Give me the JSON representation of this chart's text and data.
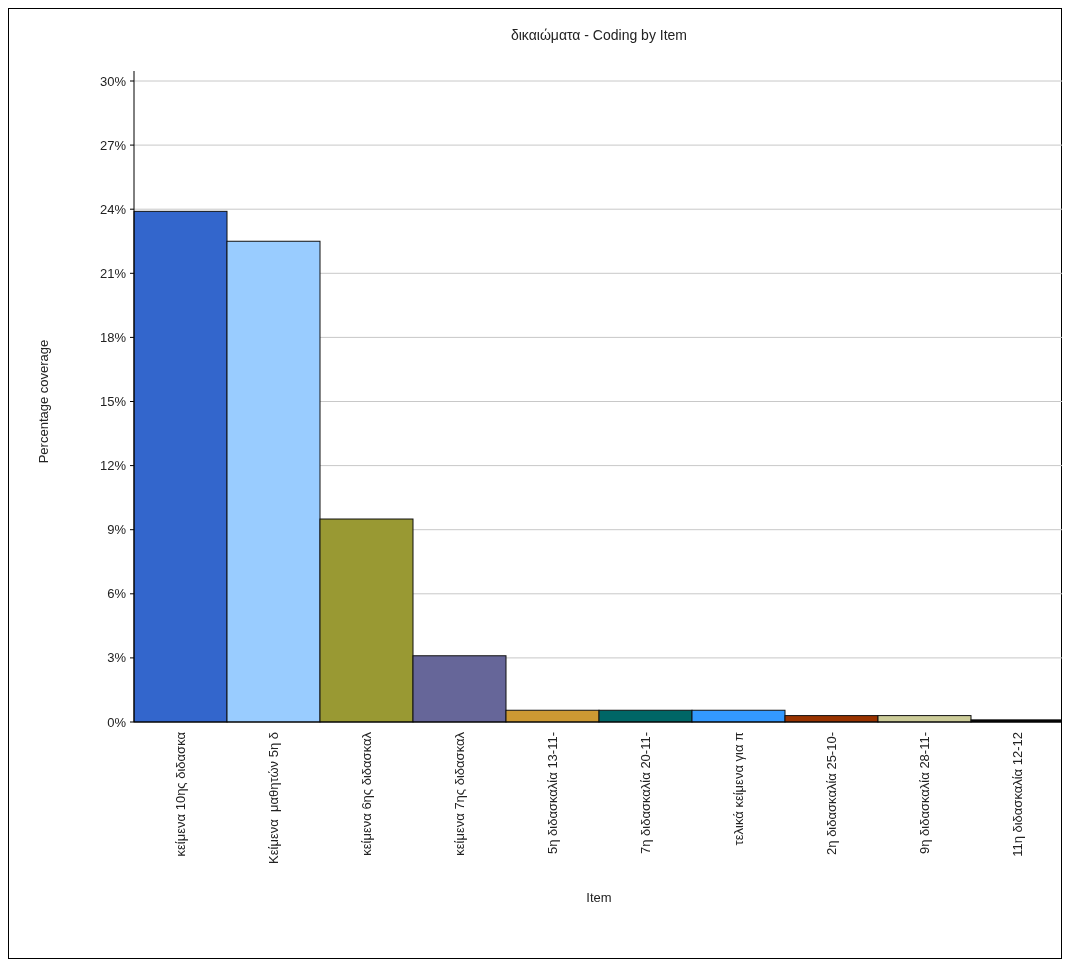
{
  "chart_data": {
    "type": "bar",
    "title": "δικαιώματα - Coding by Item",
    "xlabel": "Item",
    "ylabel": "Percentage coverage",
    "categories": [
      "κείμενα 10ης διδασκα",
      "Κείμενα  μαθητών 5η δ",
      "κείμενα 6ης διδασκαλ",
      "κείμενα 7ης διδασκαλ",
      "5η διδασκαλία 13-11-",
      "7η διδασκαλία 20-11-",
      "τελικά κείμενα για π",
      "2η διδασκαλία 25-10-",
      "9η διδασκαλία 28-11-",
      "11η διδασκαλία 12-12"
    ],
    "values": [
      23.9,
      22.5,
      9.5,
      3.1,
      0.55,
      0.55,
      0.55,
      0.3,
      0.3,
      0.1
    ],
    "colors": [
      "#3366cc",
      "#99ccff",
      "#999933",
      "#666699",
      "#cc9933",
      "#006666",
      "#3399ff",
      "#993300",
      "#cccc99",
      "#000000"
    ],
    "ylim": [
      0,
      30
    ],
    "yticks": [
      {
        "value": 0,
        "label": "0%"
      },
      {
        "value": 3,
        "label": "3%"
      },
      {
        "value": 6,
        "label": "6%"
      },
      {
        "value": 9,
        "label": "9%"
      },
      {
        "value": 12,
        "label": "12%"
      },
      {
        "value": 15,
        "label": "15%"
      },
      {
        "value": 18,
        "label": "18%"
      },
      {
        "value": 21,
        "label": "21%"
      },
      {
        "value": 24,
        "label": "24%"
      },
      {
        "value": 27,
        "label": "27%"
      },
      {
        "value": 30,
        "label": "30%"
      }
    ],
    "grid": "y"
  }
}
